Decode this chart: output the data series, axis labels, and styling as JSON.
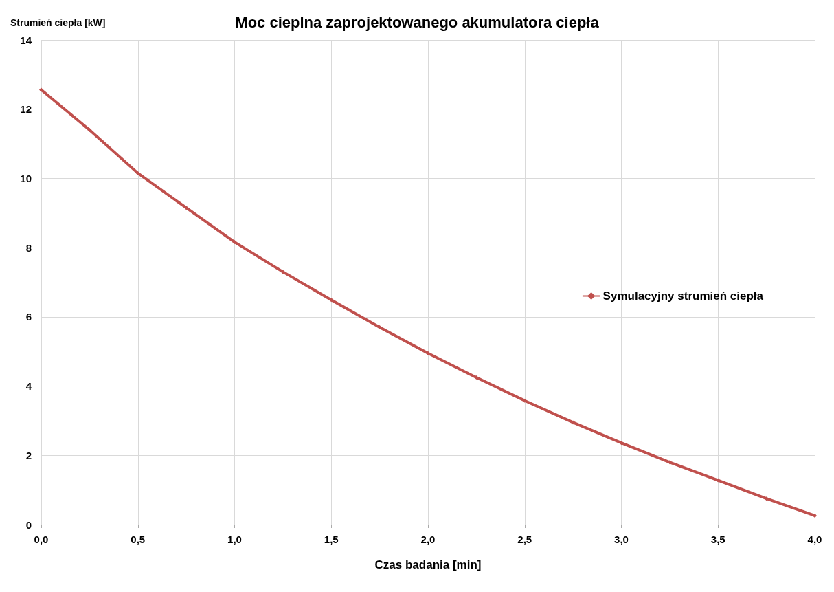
{
  "chart_data": {
    "type": "line",
    "title": "Moc cieplna zaprojektowanego akumulatora ciepła",
    "xlabel": "Czas badania [min]",
    "ylabel": "Strumień ciepła [kW]",
    "x": [
      0,
      0.25,
      0.5,
      0.75,
      1.0,
      1.25,
      1.5,
      1.75,
      2.0,
      2.25,
      2.5,
      2.75,
      3.0,
      3.25,
      3.5,
      3.75,
      4.0
    ],
    "series": [
      {
        "name": "Symulacyjny strumień ciepła",
        "color": "#c0504d",
        "values": [
          12.56,
          11.4,
          10.15,
          9.15,
          8.16,
          7.3,
          6.49,
          5.7,
          4.95,
          4.25,
          3.58,
          2.95,
          2.36,
          1.8,
          1.28,
          0.75,
          0.26
        ]
      }
    ],
    "xlim": [
      0,
      4
    ],
    "xticks": [
      {
        "value": 0,
        "label": "0,0"
      },
      {
        "value": 0.5,
        "label": "0,5"
      },
      {
        "value": 1,
        "label": "1,0"
      },
      {
        "value": 1.5,
        "label": "1,5"
      },
      {
        "value": 2,
        "label": "2,0"
      },
      {
        "value": 2.5,
        "label": "2,5"
      },
      {
        "value": 3,
        "label": "3,0"
      },
      {
        "value": 3.5,
        "label": "3,5"
      },
      {
        "value": 4,
        "label": "4,0"
      }
    ],
    "ylim": [
      0,
      14
    ],
    "yticks": [
      0,
      2,
      4,
      6,
      8,
      10,
      12,
      14
    ],
    "grid": true,
    "legend": "right",
    "marker": "diamond",
    "line_style": "solid"
  }
}
